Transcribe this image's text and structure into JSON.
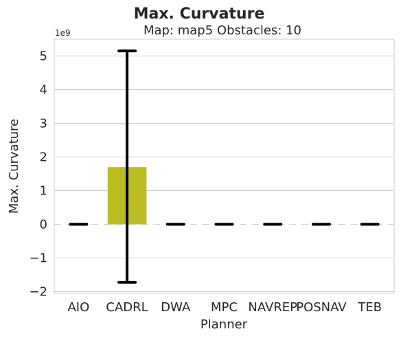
{
  "title": "Max. Curvature",
  "subtitle": "Map: map5 Obstacles: 10",
  "chart_data": {
    "type": "bar",
    "title": "Max. Curvature",
    "subtitle": "Map: map5 Obstacles: 10",
    "xlabel": "Planner",
    "ylabel": "Max. Curvature",
    "y_offset_label": "1e9",
    "categories": [
      "AIO",
      "CADRL",
      "DWA",
      "MPC",
      "NAVREP",
      "POSNAV",
      "TEB"
    ],
    "values": [
      0,
      1.7,
      0,
      0,
      0,
      0,
      0
    ],
    "error_low": [
      0,
      -1.72,
      0,
      0,
      0,
      0,
      0
    ],
    "error_high": [
      0,
      5.15,
      0,
      0,
      0,
      0,
      0
    ],
    "bar_colors": [
      "#ffffff",
      "#bcbd22",
      "#ffffff",
      "#ffffff",
      "#ffffff",
      "#ffffff",
      "#ffffff"
    ],
    "ylim": [
      -2.05,
      5.5
    ],
    "yticks": [
      -2,
      -1,
      0,
      1,
      2,
      3,
      4,
      5
    ],
    "ytick_labels": [
      "−2",
      "−1",
      "0",
      "1",
      "2",
      "3",
      "4",
      "5"
    ],
    "grid": "horizontal",
    "zero_line": "dashed"
  }
}
